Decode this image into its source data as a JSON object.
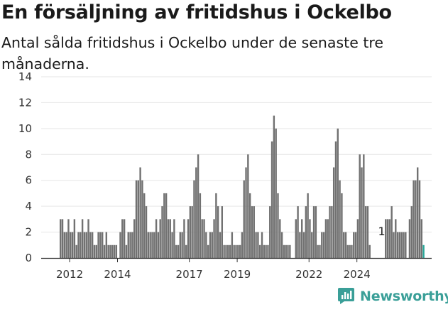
{
  "header": {
    "title": "En försäljning av fritidshus i Ockelbo",
    "subtitle": "Antal sålda fritidshus i Ockelbo under de senaste tre månaderna."
  },
  "brand": {
    "name": "Newsworthy"
  },
  "colors": {
    "bar": "#717171",
    "highlight": "#2aa89a",
    "grid": "#e6e6e6",
    "axis": "#333333",
    "brand": "#3a9f98"
  },
  "chart_data": {
    "type": "bar",
    "title": "En försäljning av fritidshus i Ockelbo",
    "subtitle": "Antal sålda fritidshus i Ockelbo under de senaste tre månaderna.",
    "xlabel": "",
    "ylabel": "",
    "ylim": [
      0,
      14
    ],
    "yticks": [
      0,
      2,
      4,
      6,
      8,
      10,
      12,
      14
    ],
    "x_tick_labels": [
      "2012",
      "2014",
      "2017",
      "2019",
      "2022",
      "2024"
    ],
    "grid": true,
    "start": "2011-08",
    "interval": "month",
    "values": [
      3,
      3,
      2,
      2,
      3,
      2,
      2,
      3,
      1,
      2,
      2,
      3,
      2,
      2,
      3,
      2,
      2,
      1,
      1,
      2,
      2,
      2,
      1,
      2,
      1,
      1,
      1,
      1,
      1,
      0,
      2,
      3,
      3,
      1,
      2,
      2,
      2,
      3,
      6,
      6,
      7,
      6,
      5,
      4,
      2,
      2,
      2,
      2,
      3,
      2,
      3,
      4,
      5,
      5,
      3,
      3,
      2,
      3,
      1,
      1,
      2,
      2,
      3,
      1,
      3,
      4,
      4,
      6,
      7,
      8,
      5,
      3,
      3,
      2,
      1,
      2,
      2,
      3,
      5,
      4,
      2,
      4,
      1,
      1,
      1,
      1,
      2,
      1,
      1,
      1,
      1,
      2,
      6,
      7,
      8,
      5,
      4,
      4,
      2,
      2,
      1,
      2,
      1,
      1,
      1,
      4,
      9,
      11,
      10,
      5,
      3,
      2,
      1,
      1,
      1,
      1,
      null,
      null,
      3,
      4,
      2,
      3,
      2,
      4,
      5,
      3,
      2,
      4,
      4,
      1,
      1,
      2,
      2,
      3,
      3,
      4,
      4,
      7,
      9,
      10,
      6,
      5,
      2,
      2,
      1,
      1,
      1,
      2,
      2,
      3,
      8,
      7,
      8,
      4,
      4,
      1,
      null,
      null,
      null,
      null,
      null,
      null,
      null,
      3,
      3,
      3,
      4,
      2,
      3,
      2,
      2,
      2,
      2,
      2,
      null,
      3,
      4,
      6,
      6,
      7,
      6,
      3,
      1
    ],
    "annotations": [
      {
        "label": "1",
        "value": 1,
        "period": "2025-01"
      }
    ]
  }
}
